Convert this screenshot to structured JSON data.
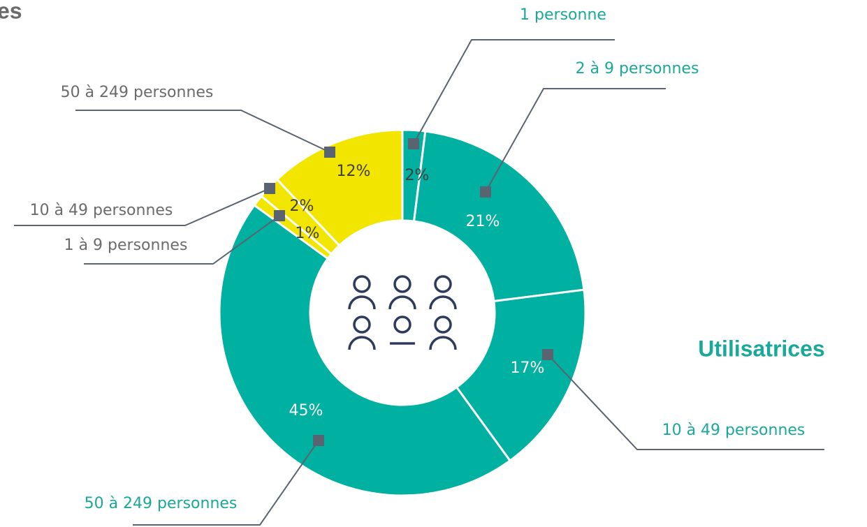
{
  "chart_data": {
    "type": "pie",
    "title": "es",
    "annotation": "Utilisatrices",
    "categories": [
      "1 personne",
      "2 à 9 personnes",
      "10 à 49 personnes",
      "50 à 249 personnes",
      "1 à 9 personnes",
      "10 à 49 personnes",
      "50 à 249 personnes"
    ],
    "values": [
      2,
      21,
      17,
      45,
      1,
      2,
      12
    ],
    "value_labels": [
      "2%",
      "21%",
      "17%",
      "45%",
      "1%",
      "2%",
      "12%"
    ],
    "colors": [
      "#00b0a0",
      "#00b0a0",
      "#00b0a0",
      "#00b0a0",
      "#f2e600",
      "#f2e600",
      "#f2e600"
    ]
  }
}
